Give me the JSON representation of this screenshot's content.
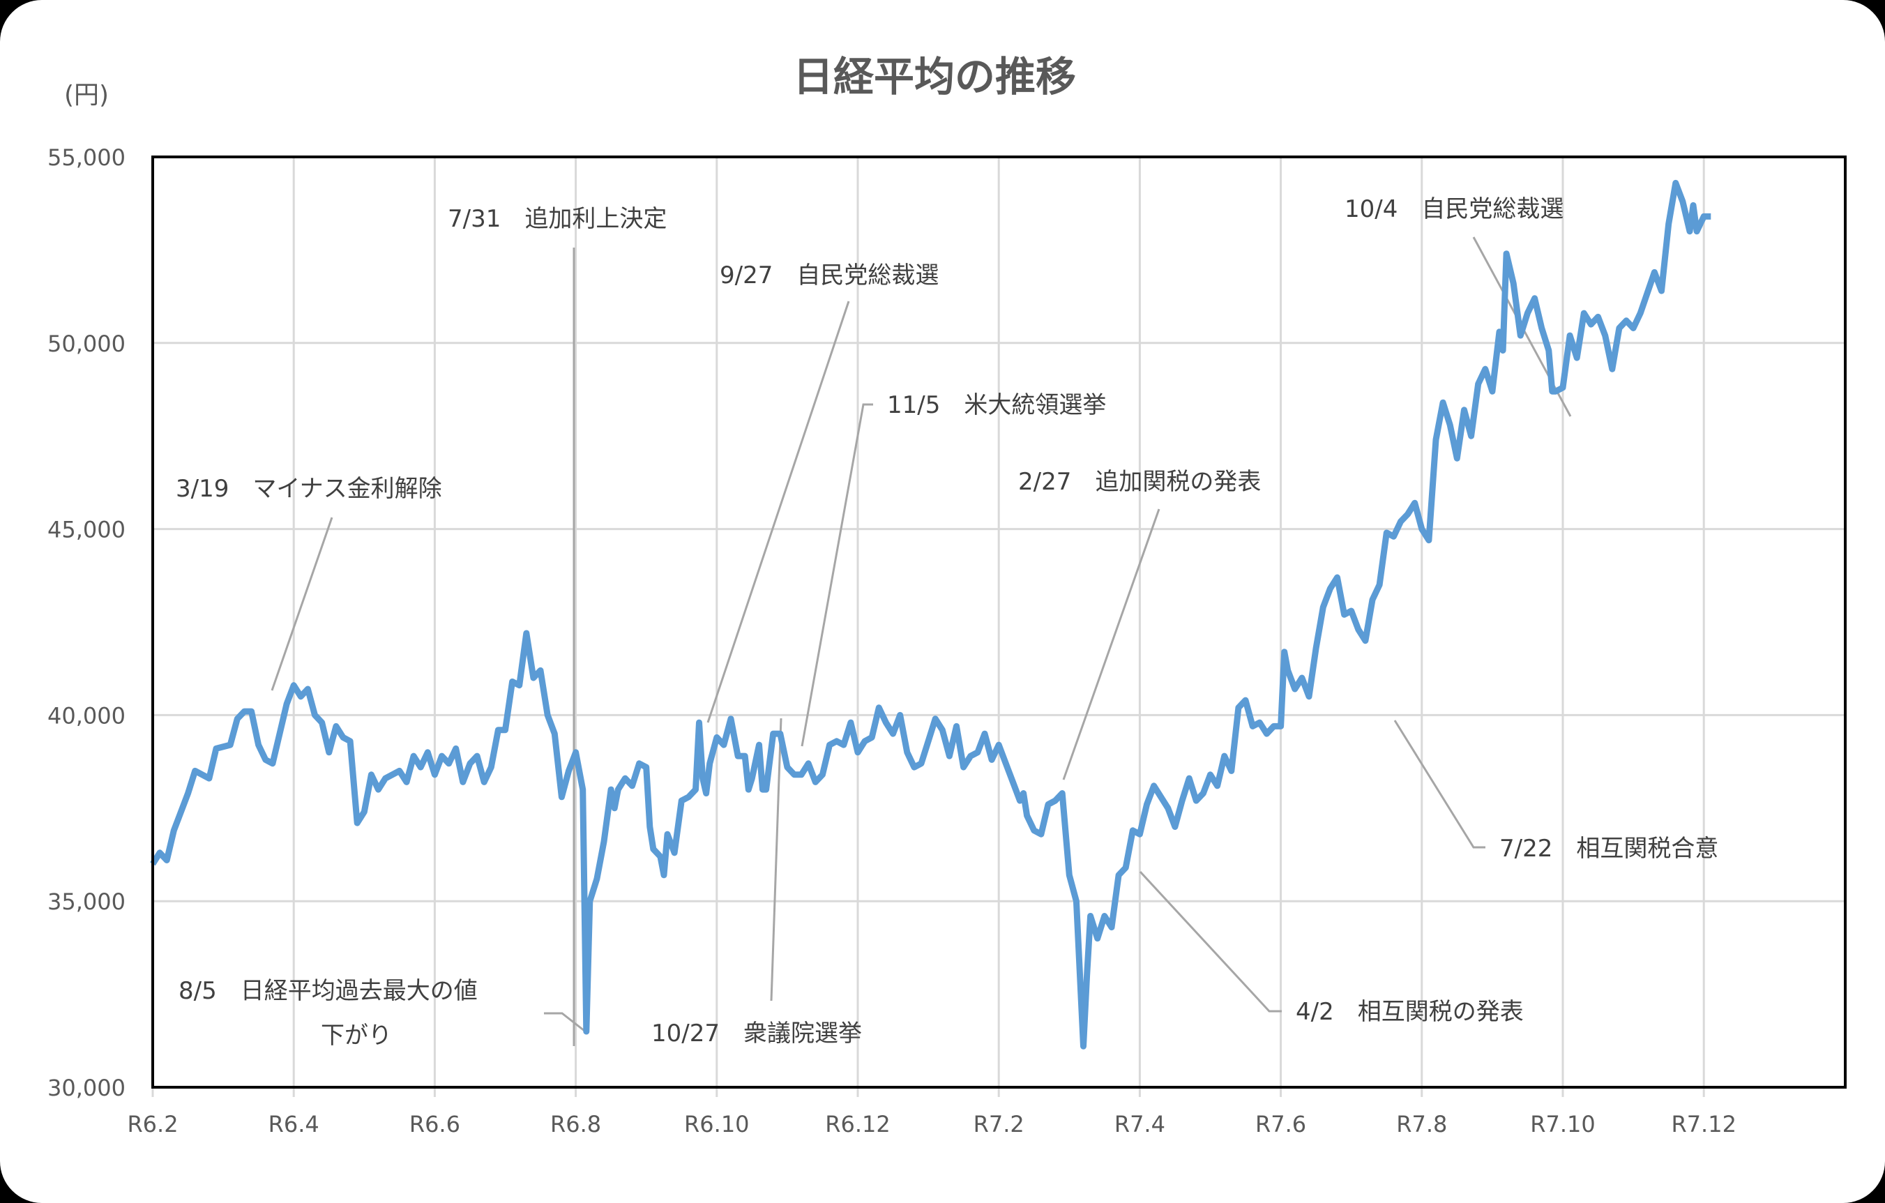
{
  "chart_data": {
    "type": "line",
    "title": "日経平均の推移",
    "ylabel": "(円)",
    "xlabel": "",
    "ylim": [
      30000,
      55000
    ],
    "yticks": [
      "30,000",
      "35,000",
      "40,000",
      "45,000",
      "50,000",
      "55,000"
    ],
    "xticks": [
      "R6.2",
      "R6.4",
      "R6.6",
      "R6.8",
      "R6.10",
      "R6.12",
      "R7.2",
      "R7.4",
      "R7.6",
      "R7.8",
      "R7.10",
      "R7.12"
    ],
    "grid": true,
    "legend": "none",
    "series": [
      {
        "name": "日経平均",
        "color": "#5B9BD5",
        "points_month_value": [
          [
            0,
            36000
          ],
          [
            0.1,
            36300
          ],
          [
            0.2,
            36100
          ],
          [
            0.3,
            36900
          ],
          [
            0.5,
            37900
          ],
          [
            0.6,
            38500
          ],
          [
            0.8,
            38300
          ],
          [
            0.9,
            39100
          ],
          [
            1.1,
            39200
          ],
          [
            1.2,
            39900
          ],
          [
            1.3,
            40100
          ],
          [
            1.4,
            40100
          ],
          [
            1.5,
            39200
          ],
          [
            1.6,
            38800
          ],
          [
            1.7,
            38700
          ],
          [
            1.8,
            39500
          ],
          [
            1.9,
            40300
          ],
          [
            2.0,
            40800
          ],
          [
            2.1,
            40500
          ],
          [
            2.2,
            40700
          ],
          [
            2.3,
            40000
          ],
          [
            2.4,
            39800
          ],
          [
            2.5,
            39000
          ],
          [
            2.6,
            39700
          ],
          [
            2.7,
            39400
          ],
          [
            2.8,
            39300
          ],
          [
            2.9,
            37100
          ],
          [
            3.0,
            37400
          ],
          [
            3.1,
            38400
          ],
          [
            3.2,
            38000
          ],
          [
            3.3,
            38300
          ],
          [
            3.5,
            38500
          ],
          [
            3.6,
            38200
          ],
          [
            3.7,
            38900
          ],
          [
            3.8,
            38600
          ],
          [
            3.9,
            39000
          ],
          [
            4.0,
            38400
          ],
          [
            4.1,
            38900
          ],
          [
            4.2,
            38700
          ],
          [
            4.3,
            39100
          ],
          [
            4.4,
            38200
          ],
          [
            4.5,
            38700
          ],
          [
            4.6,
            38900
          ],
          [
            4.7,
            38200
          ],
          [
            4.8,
            38600
          ],
          [
            4.9,
            39600
          ],
          [
            5.0,
            39600
          ],
          [
            5.1,
            40900
          ],
          [
            5.2,
            40800
          ],
          [
            5.3,
            42200
          ],
          [
            5.4,
            41000
          ],
          [
            5.5,
            41200
          ],
          [
            5.6,
            40000
          ],
          [
            5.7,
            39500
          ],
          [
            5.8,
            37800
          ],
          [
            5.9,
            38500
          ],
          [
            6.0,
            39000
          ],
          [
            6.1,
            38000
          ],
          [
            6.15,
            31500
          ],
          [
            6.2,
            35000
          ],
          [
            6.3,
            35600
          ],
          [
            6.4,
            36600
          ],
          [
            6.5,
            38000
          ],
          [
            6.55,
            37500
          ],
          [
            6.6,
            38000
          ],
          [
            6.7,
            38300
          ],
          [
            6.8,
            38100
          ],
          [
            6.9,
            38700
          ],
          [
            7.0,
            38600
          ],
          [
            7.05,
            37000
          ],
          [
            7.1,
            36400
          ],
          [
            7.2,
            36200
          ],
          [
            7.25,
            35700
          ],
          [
            7.3,
            36800
          ],
          [
            7.4,
            36300
          ],
          [
            7.5,
            37700
          ],
          [
            7.6,
            37800
          ],
          [
            7.7,
            38000
          ],
          [
            7.75,
            39800
          ],
          [
            7.8,
            38300
          ],
          [
            7.85,
            37900
          ],
          [
            7.9,
            38700
          ],
          [
            8.0,
            39400
          ],
          [
            8.1,
            39200
          ],
          [
            8.2,
            39900
          ],
          [
            8.3,
            38900
          ],
          [
            8.4,
            38900
          ],
          [
            8.45,
            38000
          ],
          [
            8.5,
            38300
          ],
          [
            8.6,
            39200
          ],
          [
            8.65,
            38000
          ],
          [
            8.7,
            38000
          ],
          [
            8.8,
            39500
          ],
          [
            8.9,
            39500
          ],
          [
            9.0,
            38600
          ],
          [
            9.1,
            38400
          ],
          [
            9.2,
            38400
          ],
          [
            9.3,
            38700
          ],
          [
            9.4,
            38200
          ],
          [
            9.5,
            38400
          ],
          [
            9.6,
            39200
          ],
          [
            9.7,
            39300
          ],
          [
            9.8,
            39200
          ],
          [
            9.9,
            39800
          ],
          [
            10.0,
            39000
          ],
          [
            10.1,
            39300
          ],
          [
            10.2,
            39400
          ],
          [
            10.3,
            40200
          ],
          [
            10.4,
            39800
          ],
          [
            10.5,
            39500
          ],
          [
            10.6,
            40000
          ],
          [
            10.7,
            39000
          ],
          [
            10.8,
            38600
          ],
          [
            10.9,
            38700
          ],
          [
            11.0,
            39300
          ],
          [
            11.1,
            39900
          ],
          [
            11.2,
            39600
          ],
          [
            11.3,
            38900
          ],
          [
            11.4,
            39700
          ],
          [
            11.5,
            38600
          ],
          [
            11.6,
            38900
          ],
          [
            11.7,
            39000
          ],
          [
            11.8,
            39500
          ],
          [
            11.9,
            38800
          ],
          [
            12.0,
            39200
          ],
          [
            12.1,
            38700
          ],
          [
            12.2,
            38200
          ],
          [
            12.3,
            37700
          ],
          [
            12.35,
            37900
          ],
          [
            12.4,
            37300
          ],
          [
            12.5,
            36900
          ],
          [
            12.6,
            36800
          ],
          [
            12.7,
            37600
          ],
          [
            12.8,
            37700
          ],
          [
            12.9,
            37900
          ],
          [
            13.0,
            35700
          ],
          [
            13.1,
            35000
          ],
          [
            13.2,
            31100
          ],
          [
            13.25,
            33000
          ],
          [
            13.3,
            34600
          ],
          [
            13.4,
            34000
          ],
          [
            13.5,
            34600
          ],
          [
            13.6,
            34300
          ],
          [
            13.7,
            35700
          ],
          [
            13.8,
            35900
          ],
          [
            13.9,
            36900
          ],
          [
            14.0,
            36800
          ],
          [
            14.1,
            37600
          ],
          [
            14.2,
            38100
          ],
          [
            14.3,
            37800
          ],
          [
            14.4,
            37500
          ],
          [
            14.5,
            37000
          ],
          [
            14.6,
            37700
          ],
          [
            14.7,
            38300
          ],
          [
            14.8,
            37700
          ],
          [
            14.9,
            37900
          ],
          [
            15.0,
            38400
          ],
          [
            15.1,
            38100
          ],
          [
            15.2,
            38900
          ],
          [
            15.3,
            38500
          ],
          [
            15.4,
            40200
          ],
          [
            15.5,
            40400
          ],
          [
            15.6,
            39700
          ],
          [
            15.7,
            39800
          ],
          [
            15.8,
            39500
          ],
          [
            15.9,
            39700
          ],
          [
            16.0,
            39700
          ],
          [
            16.05,
            41700
          ],
          [
            16.1,
            41200
          ],
          [
            16.2,
            40700
          ],
          [
            16.3,
            41000
          ],
          [
            16.4,
            40500
          ],
          [
            16.5,
            41800
          ],
          [
            16.6,
            42900
          ],
          [
            16.7,
            43400
          ],
          [
            16.8,
            43700
          ],
          [
            16.9,
            42700
          ],
          [
            17.0,
            42800
          ],
          [
            17.1,
            42300
          ],
          [
            17.2,
            42000
          ],
          [
            17.3,
            43100
          ],
          [
            17.4,
            43500
          ],
          [
            17.5,
            44900
          ],
          [
            17.6,
            44800
          ],
          [
            17.7,
            45200
          ],
          [
            17.8,
            45400
          ],
          [
            17.9,
            45700
          ],
          [
            18.0,
            45000
          ],
          [
            18.1,
            44700
          ],
          [
            18.2,
            47400
          ],
          [
            18.3,
            48400
          ],
          [
            18.4,
            47800
          ],
          [
            18.5,
            46900
          ],
          [
            18.6,
            48200
          ],
          [
            18.7,
            47500
          ],
          [
            18.8,
            48900
          ],
          [
            18.9,
            49300
          ],
          [
            19.0,
            48700
          ],
          [
            19.1,
            50300
          ],
          [
            19.15,
            49800
          ],
          [
            19.2,
            52400
          ],
          [
            19.3,
            51600
          ],
          [
            19.4,
            50200
          ],
          [
            19.5,
            50800
          ],
          [
            19.6,
            51200
          ],
          [
            19.7,
            50400
          ],
          [
            19.8,
            49800
          ],
          [
            19.85,
            48700
          ],
          [
            19.9,
            48700
          ],
          [
            20.0,
            48800
          ],
          [
            20.1,
            50200
          ],
          [
            20.2,
            49600
          ],
          [
            20.3,
            50800
          ],
          [
            20.4,
            50500
          ],
          [
            20.5,
            50700
          ],
          [
            20.6,
            50200
          ],
          [
            20.7,
            49300
          ],
          [
            20.8,
            50400
          ],
          [
            20.9,
            50600
          ],
          [
            21.0,
            50400
          ],
          [
            21.1,
            50800
          ],
          [
            21.3,
            51900
          ],
          [
            21.4,
            51400
          ],
          [
            21.5,
            53200
          ],
          [
            21.6,
            54300
          ],
          [
            21.7,
            53800
          ],
          [
            21.8,
            53000
          ],
          [
            21.85,
            53700
          ],
          [
            21.9,
            53000
          ],
          [
            22.0,
            53400
          ],
          [
            22.1,
            53400
          ]
        ]
      }
    ],
    "annotations": [
      {
        "date": "3/19",
        "text": "マイナス金利解除"
      },
      {
        "date": "7/31",
        "text": "追加利上決定"
      },
      {
        "date": "8/5",
        "text": "日経平均過去最大の値",
        "text2": "下がり"
      },
      {
        "date": "9/27",
        "text": "自民党総裁選"
      },
      {
        "date": "10/27",
        "text": "衆議院選挙"
      },
      {
        "date": "11/5",
        "text": "米大統領選挙"
      },
      {
        "date": "2/27",
        "text": "追加関税の発表"
      },
      {
        "date": "4/2",
        "text": "相互関税の発表"
      },
      {
        "date": "7/22",
        "text": "相互関税合意"
      },
      {
        "date": "10/4",
        "text": "自民党総裁選"
      }
    ]
  }
}
